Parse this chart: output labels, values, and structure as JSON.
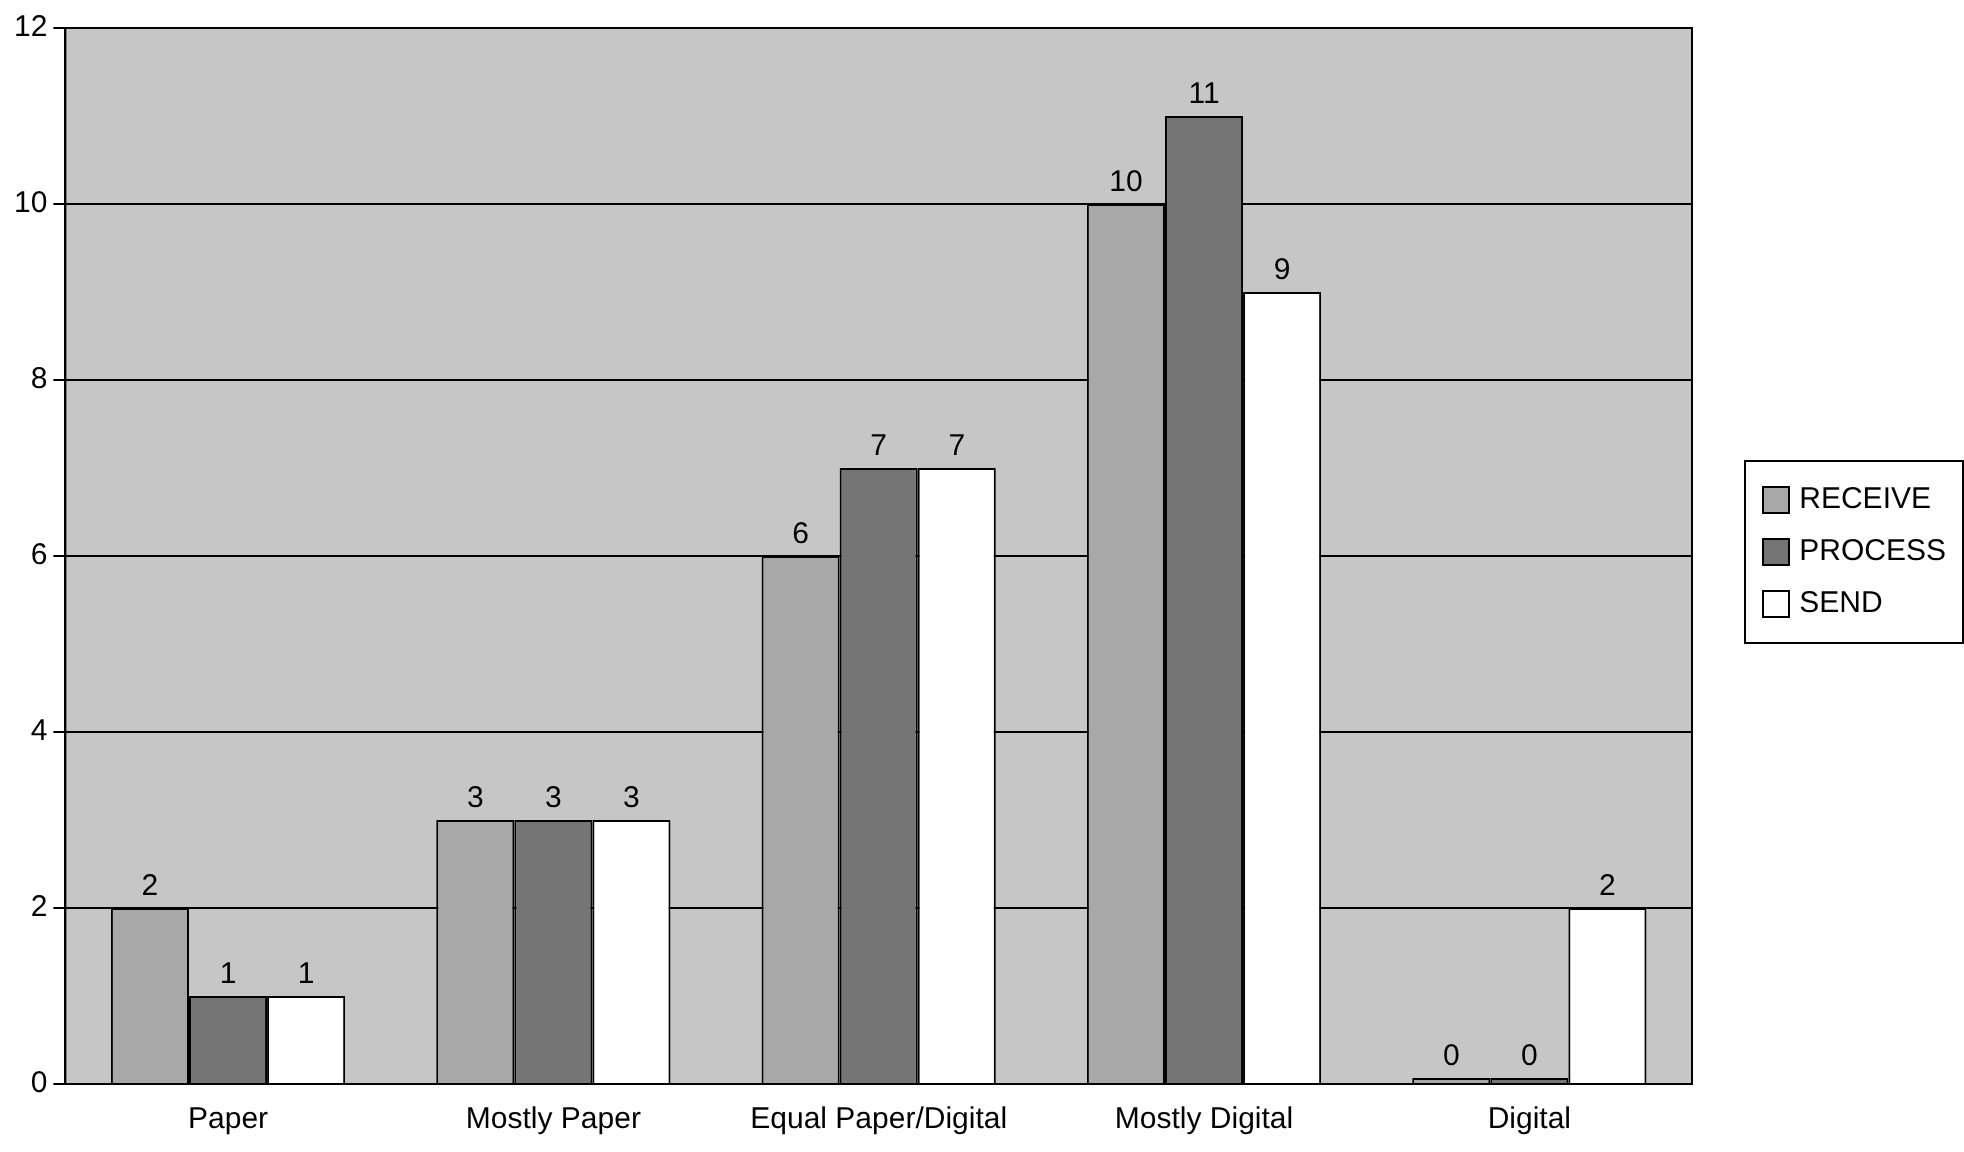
{
  "chart_data": {
    "type": "bar",
    "categories": [
      "Paper",
      "Mostly Paper",
      "Equal Paper/Digital",
      "Mostly Digital",
      "Digital"
    ],
    "series": [
      {
        "name": "RECEIVE",
        "color": "#a8a8a8",
        "values": [
          2,
          3,
          6,
          10,
          0
        ]
      },
      {
        "name": "PROCESS",
        "color": "#757575",
        "values": [
          1,
          3,
          7,
          11,
          0
        ]
      },
      {
        "name": "SEND",
        "color": "#ffffff",
        "values": [
          1,
          3,
          7,
          9,
          2
        ]
      }
    ],
    "ylim": [
      0,
      12
    ],
    "yticks": [
      0,
      2,
      4,
      6,
      8,
      10,
      12
    ],
    "grid": "y",
    "legend": "right",
    "data_labels": true
  }
}
